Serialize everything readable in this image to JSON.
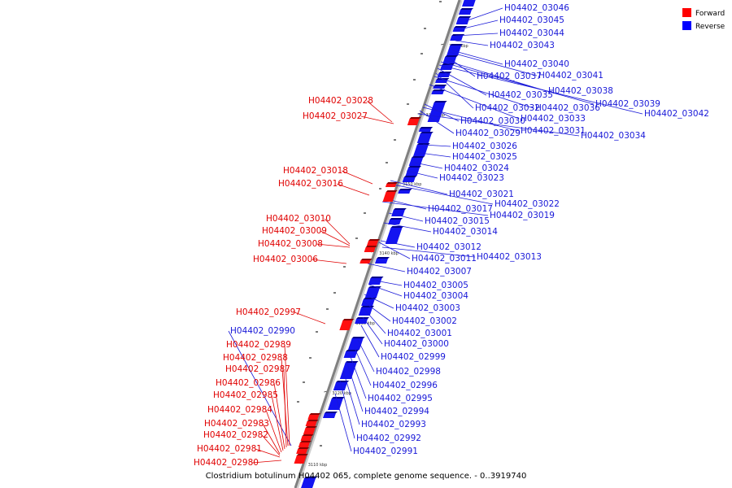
{
  "caption": "Clostridium botulinum H04402 065, complete genome sequence. - 0..3919740",
  "legend": [
    {
      "label": "Forward",
      "color": "#ff0000"
    },
    {
      "label": "Reverse",
      "color": "#0000ff"
    }
  ],
  "ticks": [
    "3170 kbp",
    "3160 kbp",
    "3150 kbp",
    "3140 kbp",
    "3130 kbp",
    "3120 kbp",
    "3110 kbp"
  ],
  "forward_genes": [
    "H04402_03028",
    "H04402_03027",
    "H04402_03018",
    "H04402_03016",
    "H04402_03010",
    "H04402_03009",
    "H04402_03008",
    "H04402_03006",
    "H04402_02997",
    "H04402_02989",
    "H04402_02988",
    "H04402_02987",
    "H04402_02986",
    "H04402_02985",
    "H04402_02984",
    "H04402_02983",
    "H04402_02982",
    "H04402_02981",
    "H04402_02980"
  ],
  "reverse_genes": [
    "H04402_02990",
    "H04402_03046",
    "H04402_03045",
    "H04402_03044",
    "H04402_03043",
    "H04402_03040",
    "H04402_03041",
    "H04402_03037",
    "H04402_03038",
    "H04402_03039",
    "H04402_03042",
    "H04402_03035",
    "H04402_03032",
    "H04402_03036",
    "H04402_03033",
    "H04402_03030",
    "H04402_03031",
    "H04402_03029",
    "H04402_03034",
    "H04402_03026",
    "H04402_03025",
    "H04402_03024",
    "H04402_03023",
    "H04402_03021",
    "H04402_03022",
    "H04402_03017",
    "H04402_03019",
    "H04402_03015",
    "H04402_03014",
    "H04402_03012",
    "H04402_03011",
    "H04402_03013",
    "H04402_03007",
    "H04402_03005",
    "H04402_03004",
    "H04402_03003",
    "H04402_03002",
    "H04402_03001",
    "H04402_03000",
    "H04402_02999",
    "H04402_02998",
    "H04402_02996",
    "H04402_02995",
    "H04402_02994",
    "H04402_02993",
    "H04402_02992",
    "H04402_02991"
  ]
}
